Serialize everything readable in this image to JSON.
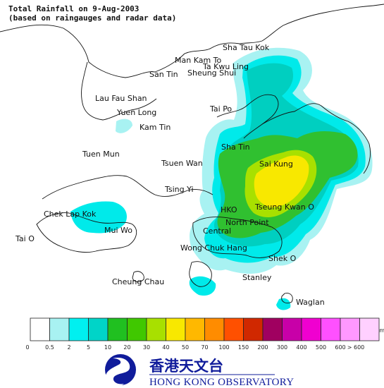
{
  "map": {
    "title_line1": "Total Rainfall on 9-Aug-2003",
    "title_line2": "(based on raingauges and radar data)",
    "places": [
      "Sha Tau Kok",
      "Man Kam To",
      "Ta Kwu Ling",
      "San Tin",
      "Sheung Shui",
      "Lau Fau Shan",
      "Yuen Long",
      "Kam Tin",
      "Tai Po",
      "Tuen Mun",
      "Sha Tin",
      "Tsuen Wan",
      "Sai Kung",
      "Tsing Yi",
      "Chek Lap Kok",
      "HKO",
      "Tseung Kwan O",
      "Mui Wo",
      "North Point",
      "Central",
      "Tai O",
      "Wong Chuk Hang",
      "Shek O",
      "Stanley",
      "Cheung Chau",
      "Waglan"
    ]
  },
  "legend": {
    "unit": "mm",
    "thresholds": [
      "0",
      "0.5",
      "2",
      "5",
      "10",
      "20",
      "30",
      "40",
      "50",
      "70",
      "100",
      "150",
      "200",
      "300",
      "400",
      "500",
      "600",
      "> 600"
    ],
    "colors": [
      "#ffffff",
      "#a8f2f2",
      "#00f0f0",
      "#00d4c8",
      "#20c020",
      "#40c800",
      "#a8e000",
      "#f8e800",
      "#ffb800",
      "#ff8c00",
      "#ff5000",
      "#d02800",
      "#a00060",
      "#c800a8",
      "#f000d0",
      "#ff50ff",
      "#ff98ff",
      "#ffd0ff"
    ]
  },
  "logo": {
    "chinese": "香港天文台",
    "english": "HONG KONG OBSERVATORY",
    "colors": {
      "primary": "#101c9b"
    }
  }
}
